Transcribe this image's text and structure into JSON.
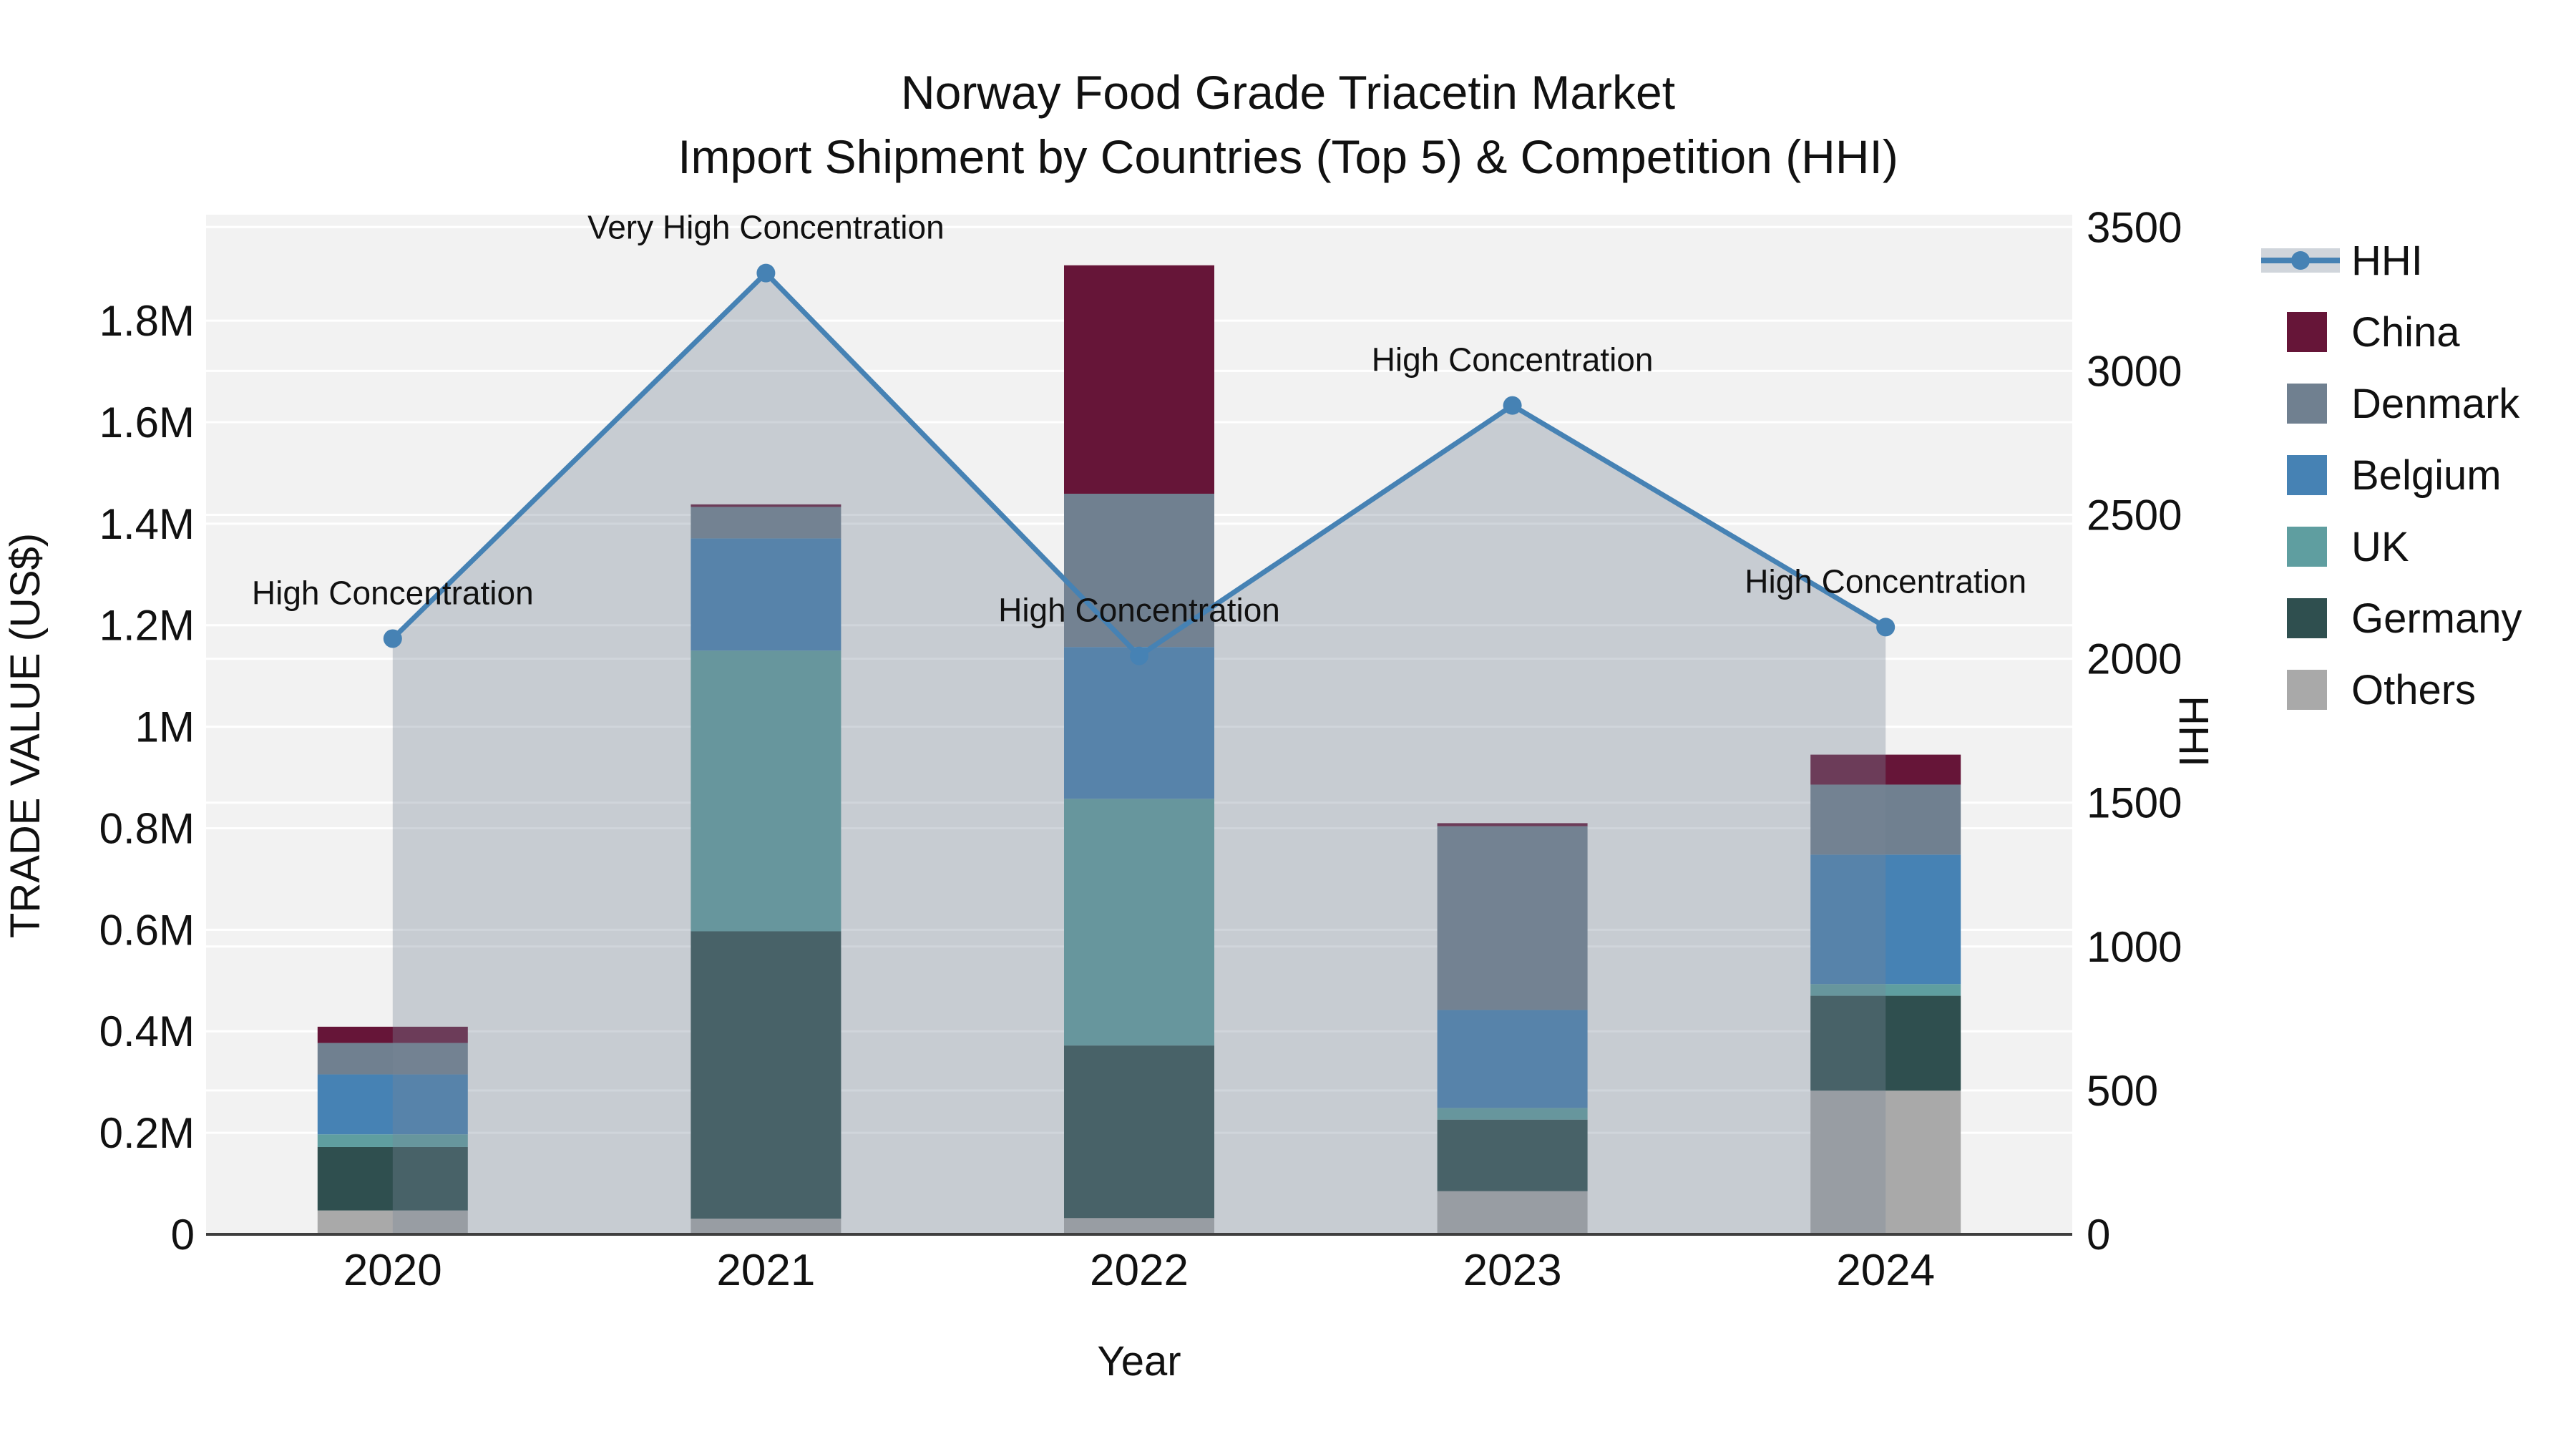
{
  "title": {
    "line1": "Norway Food Grade Triacetin Market",
    "line2": "Import Shipment by Countries (Top 5) & Competition (HHI)"
  },
  "axes": {
    "x_label": "Year",
    "y_left_label": "TRADE VALUE (US$)",
    "y_right_label": "HHI",
    "y_left_ticks": [
      {
        "label": "0",
        "value": 0.0
      },
      {
        "label": "0.2M",
        "value": 0.2
      },
      {
        "label": "0.4M",
        "value": 0.4
      },
      {
        "label": "0.6M",
        "value": 0.6
      },
      {
        "label": "0.8M",
        "value": 0.8
      },
      {
        "label": "1M",
        "value": 1.0
      },
      {
        "label": "1.2M",
        "value": 1.2
      },
      {
        "label": "1.4M",
        "value": 1.4
      },
      {
        "label": "1.6M",
        "value": 1.6
      },
      {
        "label": "1.8M",
        "value": 1.8
      }
    ],
    "y_right_ticks": [
      {
        "label": "0",
        "value": 0
      },
      {
        "label": "500",
        "value": 500
      },
      {
        "label": "1000",
        "value": 1000
      },
      {
        "label": "1500",
        "value": 1500
      },
      {
        "label": "2000",
        "value": 2000
      },
      {
        "label": "2500",
        "value": 2500
      },
      {
        "label": "3000",
        "value": 3000
      },
      {
        "label": "3500",
        "value": 3500
      }
    ]
  },
  "legend": [
    {
      "label": "HHI",
      "type": "line",
      "color": "#4682b4"
    },
    {
      "label": "China",
      "type": "swatch",
      "color": "#661538"
    },
    {
      "label": "Denmark",
      "type": "swatch",
      "color": "#708090"
    },
    {
      "label": "Belgium",
      "type": "swatch",
      "color": "#4682b4"
    },
    {
      "label": "UK",
      "type": "swatch",
      "color": "#5f9ea0"
    },
    {
      "label": "Germany",
      "type": "swatch",
      "color": "#2f4f4f"
    },
    {
      "label": "Others",
      "type": "swatch",
      "color": "#a9a9a9"
    }
  ],
  "chart_data": {
    "type": [
      "bar",
      "line"
    ],
    "categories": [
      "2020",
      "2021",
      "2022",
      "2023",
      "2024"
    ],
    "bar_stack_note": "values in millions US$, stacked bottom-to-top as Others, Germany, UK, Belgium, Denmark, China",
    "series": [
      {
        "name": "China",
        "color": "#661538",
        "values": [
          0.032,
          0.005,
          0.45,
          0.006,
          0.059
        ]
      },
      {
        "name": "Denmark",
        "color": "#708090",
        "values": [
          0.062,
          0.062,
          0.302,
          0.362,
          0.138
        ]
      },
      {
        "name": "Belgium",
        "color": "#4682b4",
        "values": [
          0.118,
          0.221,
          0.299,
          0.193,
          0.255
        ]
      },
      {
        "name": "UK",
        "color": "#5f9ea0",
        "values": [
          0.025,
          0.553,
          0.486,
          0.023,
          0.023
        ]
      },
      {
        "name": "Germany",
        "color": "#2f4f4f",
        "values": [
          0.125,
          0.566,
          0.34,
          0.141,
          0.187
        ]
      },
      {
        "name": "Others",
        "color": "#a9a9a9",
        "values": [
          0.047,
          0.031,
          0.032,
          0.085,
          0.283
        ]
      }
    ],
    "bar_totals": [
      0.41,
      1.44,
      1.91,
      0.81,
      0.95
    ],
    "line_series": {
      "name": "HHI",
      "color": "#4682b4",
      "fill": "rgba(119,136,153,0.35)",
      "values": [
        2070,
        3340,
        2010,
        2880,
        2110
      ]
    },
    "annotations": [
      {
        "category": "2020",
        "text": "High Concentration"
      },
      {
        "category": "2021",
        "text": "Very High Concentration"
      },
      {
        "category": "2022",
        "text": "High Concentration"
      },
      {
        "category": "2023",
        "text": "High Concentration"
      },
      {
        "category": "2024",
        "text": "High Concentration"
      }
    ],
    "xlabel": "Year",
    "ylabel_left": "TRADE VALUE (US$)",
    "ylabel_right": "HHI",
    "ylim_left": [
      0,
      2.0
    ],
    "ylim_right": [
      0,
      3500
    ],
    "grid": true,
    "legend_position": "right"
  },
  "colors": {
    "plot_bg": "#f2f2f2",
    "gridline": "#ffffff",
    "axis_line": "#3f3f3f",
    "text": "#111111"
  }
}
